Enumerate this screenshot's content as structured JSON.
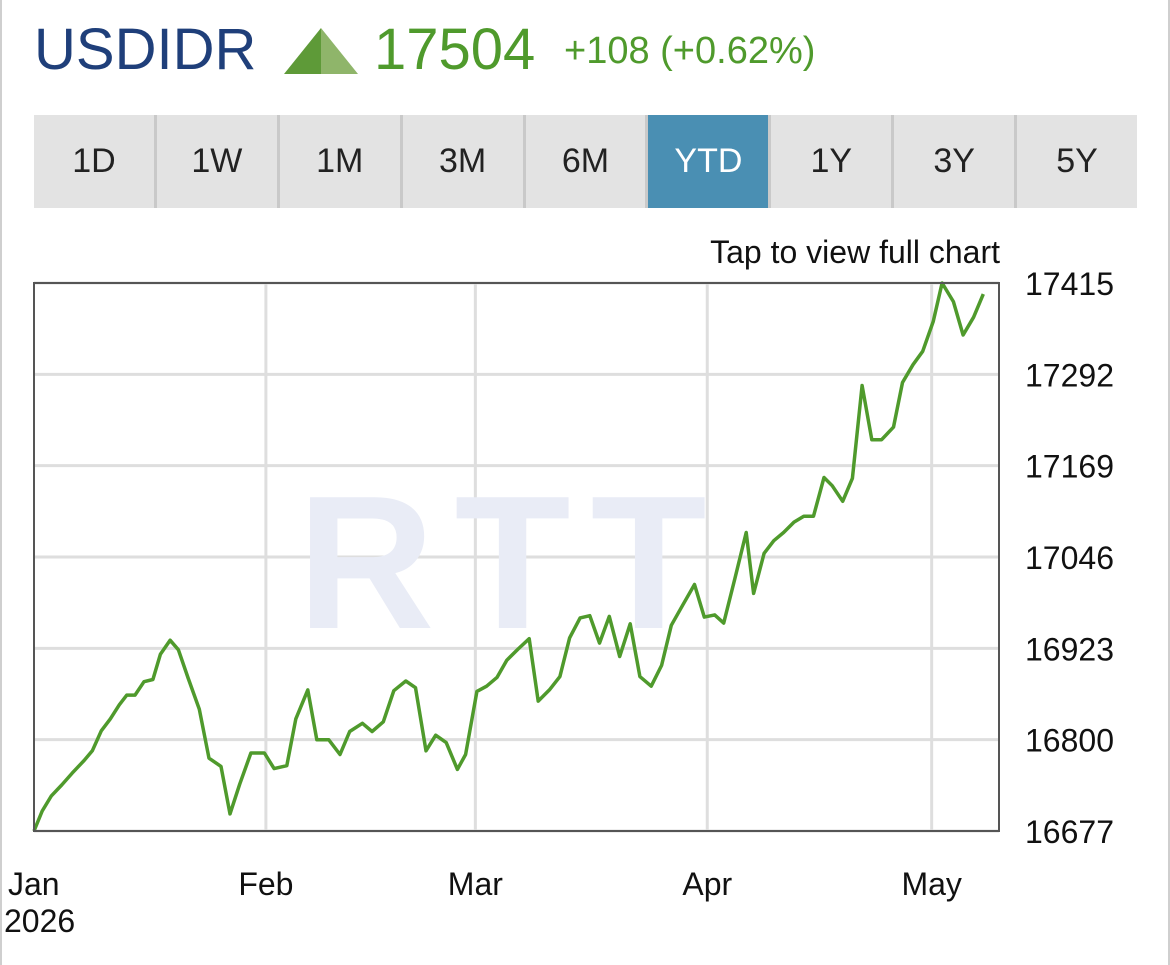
{
  "header": {
    "symbol": "USDIDR",
    "price": "17504",
    "change": "+108 (+0.62%)",
    "direction_icon": "up-triangle-icon",
    "colors": {
      "symbol": "#1f3f7a",
      "positive": "#4f9a2c"
    }
  },
  "tabs": [
    {
      "label": "1D",
      "active": false
    },
    {
      "label": "1W",
      "active": false
    },
    {
      "label": "1M",
      "active": false
    },
    {
      "label": "3M",
      "active": false
    },
    {
      "label": "6M",
      "active": false
    },
    {
      "label": "YTD",
      "active": true
    },
    {
      "label": "1Y",
      "active": false
    },
    {
      "label": "3Y",
      "active": false
    },
    {
      "label": "5Y",
      "active": false
    }
  ],
  "tap_hint": "Tap to view full chart",
  "chart_data": {
    "type": "line",
    "title": "",
    "xlabel": "",
    "ylabel": "",
    "grid": true,
    "y_axis_position": "right",
    "ylim": [
      16677,
      17415
    ],
    "yticks": [
      "17415",
      "17292",
      "17169",
      "17046",
      "16923",
      "16800",
      "16677"
    ],
    "xticks": [
      {
        "label": "Jan",
        "sublabel": "2026",
        "t": 0
      },
      {
        "label": "Feb",
        "t": 31
      },
      {
        "label": "Mar",
        "t": 59
      },
      {
        "label": "Apr",
        "t": 90
      },
      {
        "label": "May",
        "t": 120
      }
    ],
    "xlim": [
      0,
      129
    ],
    "series": [
      {
        "color": "#4f9a2c",
        "points": [
          [
            0,
            16677
          ],
          [
            1.1,
            16704
          ],
          [
            2.3,
            16724
          ],
          [
            3.7,
            16739
          ],
          [
            5.1,
            16755
          ],
          [
            6.7,
            16772
          ],
          [
            7.8,
            16785
          ],
          [
            9.0,
            16812
          ],
          [
            10.2,
            16828
          ],
          [
            11.4,
            16847
          ],
          [
            12.4,
            16860
          ],
          [
            13.5,
            16860
          ],
          [
            14.7,
            16878
          ],
          [
            15.9,
            16881
          ],
          [
            16.9,
            16915
          ],
          [
            18.2,
            16934
          ],
          [
            19.3,
            16921
          ],
          [
            20.6,
            16883
          ],
          [
            22.1,
            16841
          ],
          [
            23.4,
            16775
          ],
          [
            25.0,
            16764
          ],
          [
            26.2,
            16700
          ],
          [
            27.5,
            16740
          ],
          [
            29.0,
            16782
          ],
          [
            30.8,
            16782
          ],
          [
            32.1,
            16761
          ],
          [
            33.8,
            16765
          ],
          [
            35.0,
            16828
          ],
          [
            36.6,
            16867
          ],
          [
            37.8,
            16800
          ],
          [
            39.4,
            16800
          ],
          [
            40.9,
            16780
          ],
          [
            42.2,
            16811
          ],
          [
            43.9,
            16822
          ],
          [
            45.2,
            16811
          ],
          [
            46.7,
            16824
          ],
          [
            48.1,
            16866
          ],
          [
            49.7,
            16879
          ],
          [
            51.0,
            16870
          ],
          [
            52.4,
            16785
          ],
          [
            53.7,
            16806
          ],
          [
            55.1,
            16796
          ],
          [
            56.6,
            16760
          ],
          [
            57.7,
            16780
          ],
          [
            59.2,
            16865
          ],
          [
            60.5,
            16872
          ],
          [
            61.9,
            16884
          ],
          [
            63.2,
            16907
          ],
          [
            64.7,
            16922
          ],
          [
            66.2,
            16936
          ],
          [
            67.4,
            16852
          ],
          [
            68.9,
            16867
          ],
          [
            70.3,
            16885
          ],
          [
            71.6,
            16937
          ],
          [
            73.0,
            16964
          ],
          [
            74.3,
            16967
          ],
          [
            75.6,
            16930
          ],
          [
            76.9,
            16966
          ],
          [
            78.3,
            16912
          ],
          [
            79.7,
            16956
          ],
          [
            81.0,
            16885
          ],
          [
            82.5,
            16872
          ],
          [
            83.9,
            16900
          ],
          [
            85.2,
            16954
          ],
          [
            86.7,
            16981
          ],
          [
            88.3,
            17009
          ],
          [
            89.6,
            16965
          ],
          [
            91.0,
            16968
          ],
          [
            92.2,
            16957
          ],
          [
            93.7,
            17017
          ],
          [
            95.2,
            17079
          ],
          [
            96.2,
            16997
          ],
          [
            97.6,
            17051
          ],
          [
            98.9,
            17068
          ],
          [
            100.2,
            17079
          ],
          [
            101.6,
            17093
          ],
          [
            102.9,
            17101
          ],
          [
            104.2,
            17101
          ],
          [
            105.6,
            17153
          ],
          [
            106.7,
            17142
          ],
          [
            108.1,
            17121
          ],
          [
            109.4,
            17152
          ],
          [
            110.7,
            17277
          ],
          [
            112.0,
            17204
          ],
          [
            113.3,
            17204
          ],
          [
            114.9,
            17221
          ],
          [
            116.1,
            17281
          ],
          [
            117.5,
            17305
          ],
          [
            118.8,
            17323
          ],
          [
            120.2,
            17363
          ],
          [
            121.4,
            17415
          ],
          [
            122.9,
            17390
          ],
          [
            124.2,
            17345
          ],
          [
            125.6,
            17369
          ],
          [
            126.9,
            17400
          ]
        ]
      }
    ],
    "watermark": "RTT"
  }
}
